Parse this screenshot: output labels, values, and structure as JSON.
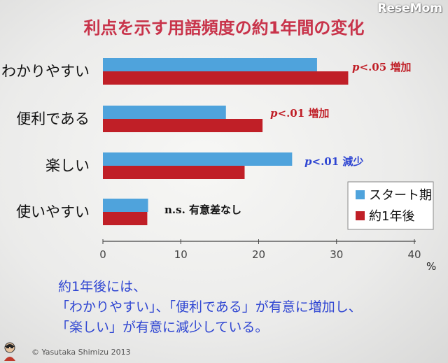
{
  "header": {
    "title": "利点を示す用語頻度の約1年間の変化",
    "logo_text": "ReseMom"
  },
  "chart_data": {
    "type": "bar",
    "orientation": "horizontal",
    "categories": [
      "わかりやすい",
      "便利である",
      "楽しい",
      "使いやすい"
    ],
    "series": [
      {
        "name": "スタート期",
        "values": [
          27.5,
          15.8,
          24.3,
          5.8
        ]
      },
      {
        "name": "約1年後",
        "values": [
          31.5,
          20.5,
          18.2,
          5.7
        ]
      }
    ],
    "xlim": [
      0,
      40
    ],
    "xticks": [
      "0",
      "10",
      "20",
      "30",
      "40"
    ],
    "unit": "%",
    "grid": false,
    "legend_position": "bottom-right",
    "colors": {
      "start": "#4fa3dc",
      "after": "#c01f27"
    },
    "annotations": [
      {
        "italic": "p",
        "text": "<.05 増加",
        "color": "#c01f27"
      },
      {
        "italic": "p",
        "text": "<.01 増加",
        "color": "#c01f27"
      },
      {
        "italic": "p",
        "text": "<.01 減少",
        "color": "#2e45d2"
      },
      {
        "italic": "",
        "text": "n.s. 有意差なし",
        "color": "#111111"
      }
    ]
  },
  "caption": {
    "line1": "約1年後には、",
    "line2": "「わかりやすい」、「便利である」が有意に増加し、",
    "line3": "「楽しい」が有意に減少している。"
  },
  "footer": {
    "copyright": "© Yasutaka Shimizu 2013"
  }
}
